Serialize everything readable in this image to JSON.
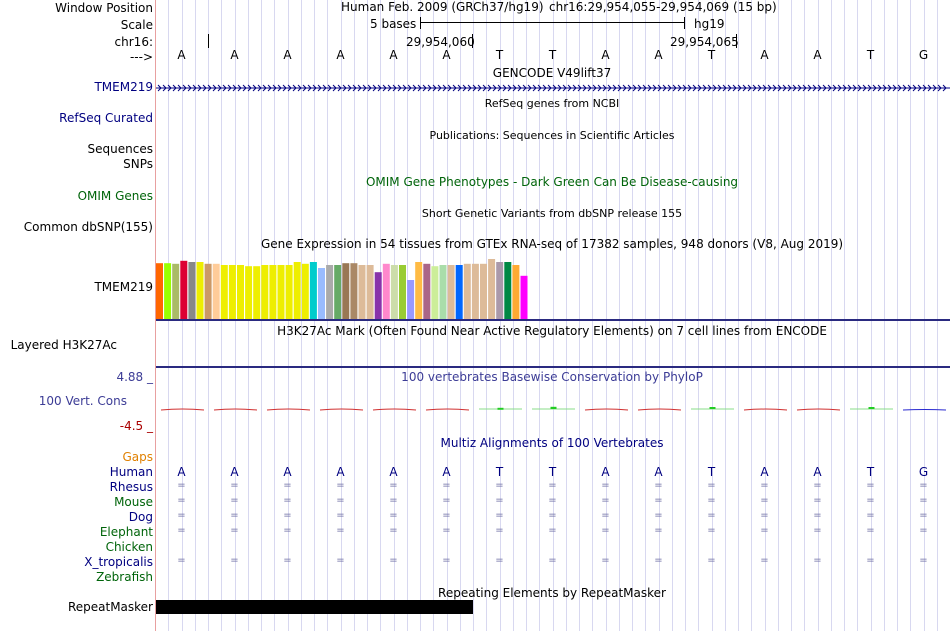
{
  "colors": {
    "grid": "#d8d8f0",
    "divider": "#e8a0a0",
    "navy": "#000080",
    "green": "#00640a",
    "indigo": "#3c3c96",
    "red": "#aa0000",
    "gaps_orange": "#e08000",
    "bar_navy": "#2a2a80"
  },
  "labels": {
    "window_position": "Window Position",
    "scale": "Scale",
    "chr": "chr16:",
    "arrow": "--->",
    "tmem219_gene": "TMEM219",
    "refseq": "RefSeq Curated",
    "sequences": "Sequences",
    "snps": "SNPs",
    "omim": "OMIM Genes",
    "dbsnp": "Common dbSNP(155)",
    "tmem219_gtex": "TMEM219",
    "h3k27ac": "Layered H3K27Ac",
    "cons_max": "4.88 _",
    "cons_label": "100 Vert. Cons",
    "cons_min": "-4.5 _",
    "gaps": "Gaps",
    "repeatmasker": "RepeatMasker"
  },
  "header": {
    "assembly": "Human Feb. 2009 (GRCh37/hg19)",
    "position": "chr16:29,954,055-29,954,069 (15 bp)",
    "scale_text": "5 bases",
    "db": "hg19",
    "tick1": "29,954,060",
    "tick2": "29,954,065"
  },
  "sequence": [
    "A",
    "A",
    "A",
    "A",
    "A",
    "A",
    "T",
    "T",
    "A",
    "A",
    "T",
    "A",
    "A",
    "T",
    "G"
  ],
  "track_titles": {
    "gencode": "GENCODE V49lift37",
    "refseq": "RefSeq genes from NCBI",
    "publications": "Publications: Sequences in Scientific Articles",
    "omim": "OMIM Gene Phenotypes - Dark Green Can Be Disease-causing",
    "dbsnp": "Short Genetic Variants from dbSNP release 155",
    "gtex": "Gene Expression in 54 tissues from GTEx RNA-seq of 17382 samples, 948 donors (V8, Aug 2019)",
    "h3k27ac": "H3K27Ac Mark (Often Found Near Active Regulatory Elements) on 7 cell lines from ENCODE",
    "phylop": "100 vertebrates Basewise Conservation by PhyloP",
    "multiz": "Multiz Alignments of 100 Vertebrates",
    "rmsk": "Repeating Elements by RepeatMasker"
  },
  "species": [
    {
      "name": "Human",
      "color": "#000080"
    },
    {
      "name": "Rhesus",
      "color": "#000080"
    },
    {
      "name": "Mouse",
      "color": "#00640a"
    },
    {
      "name": "Dog",
      "color": "#000080"
    },
    {
      "name": "Elephant",
      "color": "#00640a"
    },
    {
      "name": "Chicken",
      "color": "#00640a"
    },
    {
      "name": "X_tropicalis",
      "color": "#000080"
    },
    {
      "name": "Zebrafish",
      "color": "#00640a"
    }
  ],
  "alignment_rows": [
    [
      "=",
      "=",
      "=",
      "=",
      "=",
      "=",
      "=",
      "=",
      "=",
      "=",
      "=",
      "=",
      "=",
      "=",
      "="
    ],
    [
      "=",
      "=",
      "=",
      "=",
      "=",
      "=",
      "=",
      "=",
      "=",
      "=",
      "=",
      "=",
      "=",
      "=",
      "="
    ],
    [
      "=",
      "=",
      "=",
      "=",
      "=",
      "=",
      "=",
      "=",
      "=",
      "=",
      "=",
      "=",
      "=",
      "=",
      "="
    ],
    [
      "=",
      "=",
      "=",
      "=",
      "=",
      "=",
      "=",
      "=",
      "=",
      "=",
      "=",
      "=",
      "=",
      "=",
      "="
    ],
    [],
    [
      "=",
      "=",
      "=",
      "=",
      "=",
      "=",
      "=",
      "=",
      "=",
      "=",
      "=",
      "=",
      "=",
      "=",
      "="
    ],
    []
  ],
  "gtex_bars": {
    "colors": [
      "#ff6600",
      "#99ff00",
      "#aabb66",
      "#dd0033",
      "#888888",
      "#eeee00",
      "#cc9966",
      "#ffcc99",
      "#eeee00",
      "#eeee00",
      "#eeee00",
      "#eeee00",
      "#eeee00",
      "#eeee00",
      "#eeee00",
      "#eeee00",
      "#eeee00",
      "#eeee00",
      "#eeee00",
      "#00cccc",
      "#99bbff",
      "#aaaaaa",
      "#66aa66",
      "#997755",
      "#aa8866",
      "#ddbb99",
      "#ddbb99",
      "#8833aa",
      "#ff88cc",
      "#ccddaa",
      "#99cc33",
      "#9999ff",
      "#ffbb44",
      "#aa6688",
      "#ccee99",
      "#aaddaa",
      "#ddbb99",
      "#0066ff",
      "#ddbb99",
      "#ddbb99",
      "#ddbb99",
      "#ddbb99",
      "#aa99aa",
      "#008844",
      "#ffaa33",
      "#ff00ff"
    ],
    "heights": [
      0.93,
      0.93,
      0.92,
      0.97,
      0.95,
      0.95,
      0.92,
      0.92,
      0.9,
      0.9,
      0.9,
      0.88,
      0.88,
      0.9,
      0.9,
      0.9,
      0.9,
      0.95,
      0.92,
      0.95,
      0.85,
      0.9,
      0.9,
      0.93,
      0.93,
      0.9,
      0.9,
      0.78,
      0.92,
      0.9,
      0.9,
      0.65,
      0.95,
      0.92,
      0.88,
      0.9,
      0.9,
      0.9,
      0.92,
      0.92,
      0.92,
      1.0,
      0.95,
      0.95,
      0.9,
      0.72
    ]
  },
  "phylop": [
    -0.9,
    -0.9,
    -0.9,
    -0.9,
    -0.9,
    -0.9,
    0.6,
    1.1,
    -0.9,
    -0.9,
    1.0,
    -0.9,
    -0.9,
    1.0,
    -1.6
  ]
}
